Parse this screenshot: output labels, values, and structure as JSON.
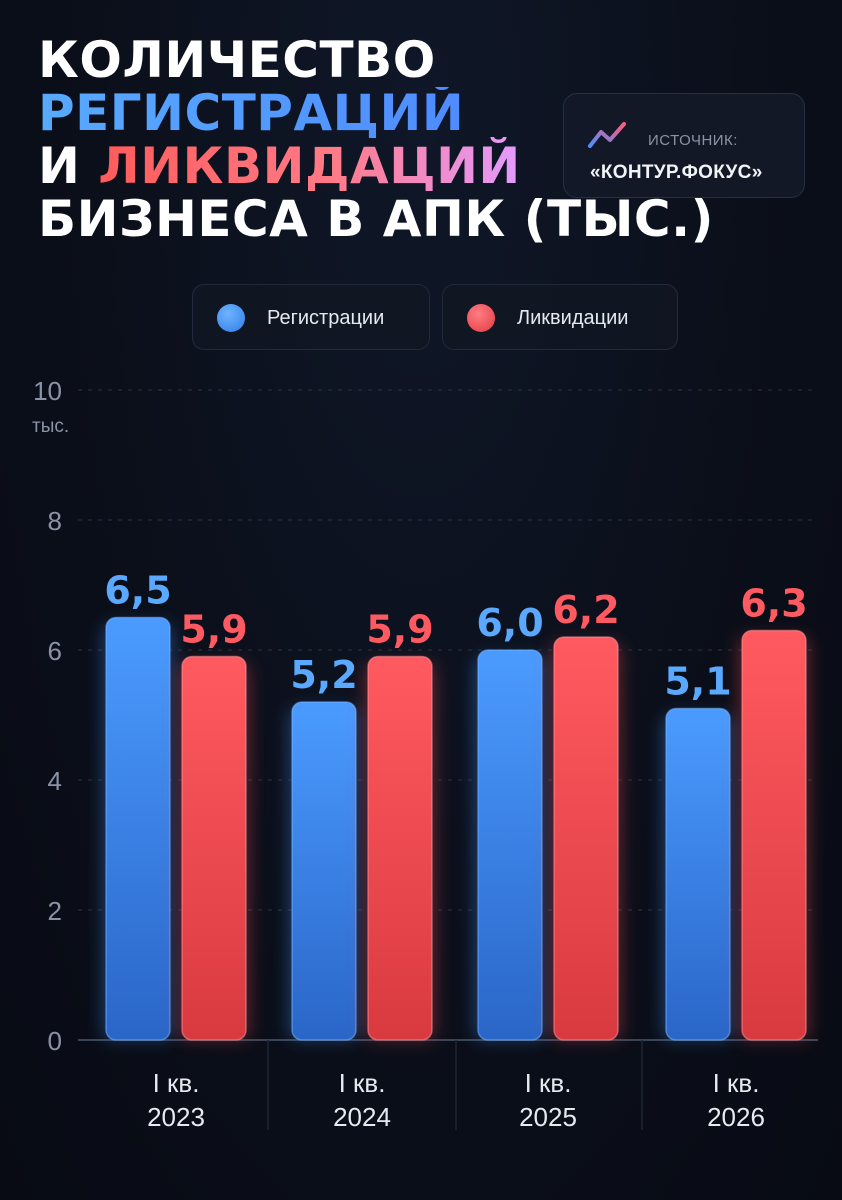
{
  "title": {
    "line1": "КОЛИЧЕСТВО",
    "line2": "РЕГИСТРАЦИЙ",
    "line3_prefix": "И ",
    "line3_highlight": "ЛИКВИДАЦИЙ",
    "line4": "БИЗНЕСА В АПК (ТЫС.)"
  },
  "source": {
    "label": "ИСТОЧНИК:",
    "name": "«КОНТУР.ФОКУС»",
    "icon": "trend-line-icon"
  },
  "colors": {
    "registrations": "#3d8df5",
    "liquidations": "#f0474c",
    "registrations_label": "#5aa8ff",
    "liquidations_label": "#ff5a61",
    "axis_text": "#8a93a6"
  },
  "chart_data": {
    "type": "bar",
    "categories": [
      [
        "I кв.",
        "2023"
      ],
      [
        "I кв.",
        "2024"
      ],
      [
        "I кв.",
        "2025"
      ],
      [
        "I кв.",
        "2026"
      ]
    ],
    "series": [
      {
        "name": "Регистрации",
        "values": [
          6.5,
          5.2,
          6.0,
          5.1
        ],
        "labels": [
          "6,5",
          "5,2",
          "6,0",
          "5,1"
        ]
      },
      {
        "name": "Ликвидации",
        "values": [
          5.9,
          5.9,
          6.2,
          6.3
        ],
        "labels": [
          "5,9",
          "5,9",
          "6,2",
          "6,3"
        ]
      }
    ],
    "ylim": [
      0,
      10
    ],
    "yticks": [
      0,
      2,
      4,
      6,
      8,
      10
    ],
    "ylabel": "тыс.",
    "grid": true,
    "legend_position": "top"
  }
}
